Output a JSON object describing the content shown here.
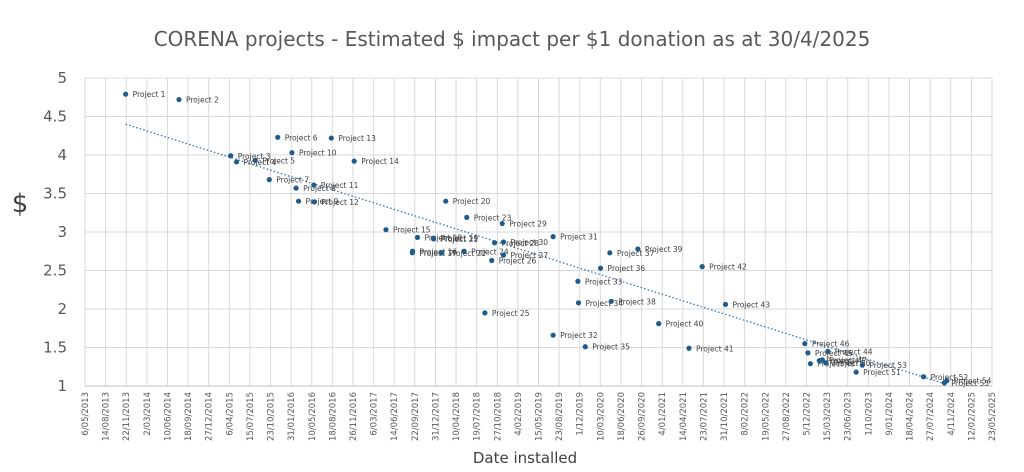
{
  "chart_data": {
    "type": "scatter",
    "title": "CORENA projects - Estimated $ impact per $1 donation as at 30/4/2025",
    "xlabel": "Date installed",
    "ylabel": "$",
    "ylim": [
      1,
      5
    ],
    "yticks": [
      "1",
      "1.5",
      "2",
      "2.5",
      "3",
      "3.5",
      "4",
      "4.5",
      "5"
    ],
    "xticks": [
      "6/05/2013",
      "14/08/2013",
      "22/11/2013",
      "2/03/2014",
      "10/06/2014",
      "18/09/2014",
      "27/12/2014",
      "6/04/2015",
      "15/07/2015",
      "23/10/2015",
      "31/01/2016",
      "10/05/2016",
      "18/08/2016",
      "26/11/2016",
      "6/03/2017",
      "14/06/2017",
      "22/09/2017",
      "31/12/2017",
      "10/04/2018",
      "19/07/2018",
      "27/10/2018",
      "4/02/2019",
      "15/05/2019",
      "23/08/2019",
      "1/12/2019",
      "10/03/2020",
      "18/06/2020",
      "26/09/2020",
      "4/01/2021",
      "14/04/2021",
      "23/07/2021",
      "31/10/2021",
      "8/02/2022",
      "19/05/2022",
      "27/08/2022",
      "5/12/2022",
      "15/03/2023",
      "23/06/2023",
      "1/10/2023",
      "9/01/2024",
      "18/04/2024",
      "27/07/2024",
      "4/11/2024",
      "12/02/2025",
      "23/05/2025"
    ],
    "grid": true,
    "trendline": {
      "style": "dotted linear",
      "start_y": 4.4,
      "end_y": 1.02
    },
    "colors": {
      "points": "#1f5c8b",
      "trend": "#2e75b6",
      "grid": "#d9d9d9"
    },
    "points": [
      {
        "label": "Project 1",
        "x": "19/11/2013",
        "y": 4.79
      },
      {
        "label": "Project 2",
        "x": "5/08/2014",
        "y": 4.72
      },
      {
        "label": "Project 3",
        "x": "13/04/2015",
        "y": 3.99
      },
      {
        "label": "Project 4",
        "x": "11/05/2015",
        "y": 3.91
      },
      {
        "label": "Project 5",
        "x": "10/08/2015",
        "y": 3.93
      },
      {
        "label": "Project 6",
        "x": "27/11/2015",
        "y": 4.23
      },
      {
        "label": "Project 7",
        "x": "17/10/2015",
        "y": 3.68
      },
      {
        "label": "Project 8",
        "x": "24/02/2016",
        "y": 3.57
      },
      {
        "label": "Project 9",
        "x": "7/03/2016",
        "y": 3.4
      },
      {
        "label": "Project 10",
        "x": "4/02/2016",
        "y": 4.03
      },
      {
        "label": "Project 11",
        "x": "20/05/2016",
        "y": 3.61
      },
      {
        "label": "Project 12",
        "x": "22/05/2016",
        "y": 3.39
      },
      {
        "label": "Project 13",
        "x": "13/08/2016",
        "y": 4.22
      },
      {
        "label": "Project 14",
        "x": "2/12/2016",
        "y": 3.92
      },
      {
        "label": "Project 15",
        "x": "5/05/2017",
        "y": 3.03
      },
      {
        "label": "Project 16",
        "x": "11/09/2017",
        "y": 2.75
      },
      {
        "label": "Project 17",
        "x": "10/09/2017",
        "y": 2.73
      },
      {
        "label": "Project 18",
        "x": "5/10/2017",
        "y": 2.93
      },
      {
        "label": "Project 19",
        "x": "22/12/2017",
        "y": 2.92
      },
      {
        "label": "Project 20",
        "x": "19/02/2018",
        "y": 3.4
      },
      {
        "label": "Project 21",
        "x": "22/12/2017",
        "y": 2.91
      },
      {
        "label": "Project 22",
        "x": "30/01/2018",
        "y": 2.73
      },
      {
        "label": "Project 23",
        "x": "1/06/2018",
        "y": 3.19
      },
      {
        "label": "Project 24",
        "x": "19/05/2018",
        "y": 2.75
      },
      {
        "label": "Project 25",
        "x": "28/08/2018",
        "y": 1.95
      },
      {
        "label": "Project 26",
        "x": "30/09/2018",
        "y": 2.63
      },
      {
        "label": "Project 27",
        "x": "26/11/2018",
        "y": 2.7
      },
      {
        "label": "Project 28",
        "x": "14/10/2018",
        "y": 2.86
      },
      {
        "label": "Project 29",
        "x": "20/11/2018",
        "y": 3.11
      },
      {
        "label": "Project 30",
        "x": "26/11/2018",
        "y": 2.87
      },
      {
        "label": "Project 31",
        "x": "25/07/2019",
        "y": 2.94
      },
      {
        "label": "Project 32",
        "x": "25/07/2019",
        "y": 1.66
      },
      {
        "label": "Project 33",
        "x": "22/11/2019",
        "y": 2.36
      },
      {
        "label": "Project 34",
        "x": "25/11/2019",
        "y": 2.08
      },
      {
        "label": "Project 35",
        "x": "28/12/2019",
        "y": 1.51
      },
      {
        "label": "Project 36",
        "x": "11/03/2020",
        "y": 2.53
      },
      {
        "label": "Project 37",
        "x": "25/04/2020",
        "y": 2.73
      },
      {
        "label": "Project 38",
        "x": "2/05/2020",
        "y": 2.1
      },
      {
        "label": "Project 39",
        "x": "8/09/2020",
        "y": 2.78
      },
      {
        "label": "Project 40",
        "x": "18/12/2020",
        "y": 1.81
      },
      {
        "label": "Project 41",
        "x": "14/05/2021",
        "y": 1.49
      },
      {
        "label": "Project 42",
        "x": "17/07/2021",
        "y": 2.55
      },
      {
        "label": "Project 43",
        "x": "7/11/2021",
        "y": 2.06
      },
      {
        "label": "Project 44",
        "x": "19/03/2023",
        "y": 1.45
      },
      {
        "label": "Project 45",
        "x": "12/12/2022",
        "y": 1.43
      },
      {
        "label": "Project 46",
        "x": "27/11/2022",
        "y": 1.55
      },
      {
        "label": "Project 47",
        "x": "20/02/2023",
        "y": 1.34
      },
      {
        "label": "Project 48",
        "x": "24/12/2022",
        "y": 1.29
      },
      {
        "label": "Project 49",
        "x": "5/02/2023",
        "y": 1.33
      },
      {
        "label": "Project 50",
        "x": "9/03/2023",
        "y": 1.3
      },
      {
        "label": "Project 51",
        "x": "3/08/2023",
        "y": 1.18
      },
      {
        "label": "Project 52",
        "x": "25/06/2024",
        "y": 1.12
      },
      {
        "label": "Project 53",
        "x": "2/09/2023",
        "y": 1.27
      },
      {
        "label": "Project 54",
        "x": "16/10/2024",
        "y": 1.07
      },
      {
        "label": "Project 55",
        "x": "4/10/2024",
        "y": 1.04
      }
    ]
  }
}
